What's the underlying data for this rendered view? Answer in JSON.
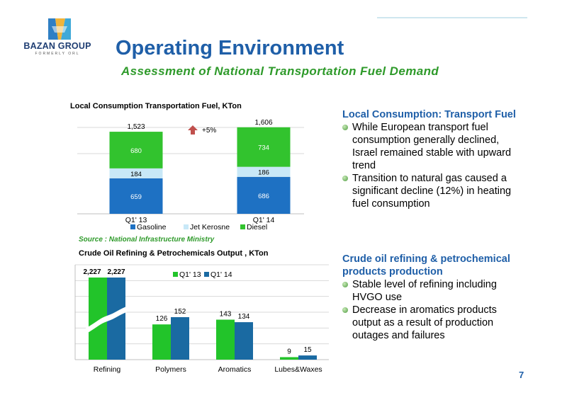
{
  "logo": {
    "name": "BAZAN GROUP",
    "sub": "FORMERLY ORL"
  },
  "title": "Operating Environment",
  "subtitle": "Assessment of National Transportation Fuel Demand",
  "source": "Source : National Infrastructure Ministry",
  "page_number": "7",
  "colors": {
    "gasoline": "#1e71c3",
    "jet_kerosene": "#c8e8f7",
    "diesel": "#32c32e",
    "q1_13": "#22c42a",
    "q1_14": "#1a6aa2",
    "title_blue": "#1f5fa8",
    "green_text": "#2e9a2a",
    "arrow_red": "#c0504d"
  },
  "right_panels": [
    {
      "heading": "Local Consumption: Transport Fuel",
      "bullets": [
        "While European transport fuel consumption generally declined, Israel remained stable with upward trend",
        "Transition to natural gas caused a significant decline (12%) in heating fuel consumption"
      ]
    },
    {
      "heading": "Crude oil refining & petrochemical products production",
      "bullets": [
        "Stable level of refining including HVGO use",
        "Decrease in aromatics products output as a result of production outages and failures"
      ]
    }
  ],
  "chart_data": [
    {
      "type": "bar",
      "stacked": true,
      "title": "Local Consumption Transportation Fuel, KTon",
      "categories": [
        "Q1' 13",
        "Q1' 14"
      ],
      "series": [
        {
          "name": "Gasoline",
          "values": [
            659,
            686
          ]
        },
        {
          "name": "Jet Kerosne",
          "values": [
            184,
            186
          ]
        },
        {
          "name": "Diesel",
          "values": [
            680,
            734
          ]
        }
      ],
      "totals": [
        1523,
        1606
      ],
      "total_labels": [
        "1,523",
        "1,606"
      ],
      "annotation": "+5%",
      "legend_position": "bottom",
      "grid": true,
      "ylim": [
        0,
        1800
      ]
    },
    {
      "type": "bar",
      "title": "Crude Oil Refining & Petrochemicals Output , KTon",
      "categories": [
        "Refining",
        "Polymers",
        "Aromatics",
        "Lubes&Waxes"
      ],
      "series": [
        {
          "name": "Q1' 13",
          "values": [
            2227,
            126,
            143,
            9
          ],
          "labels": [
            "2,227",
            "126",
            "143",
            "9"
          ]
        },
        {
          "name": "Q1' 14",
          "values": [
            2227,
            152,
            134,
            15
          ],
          "labels": [
            "2,227",
            "152",
            "134",
            "15"
          ]
        }
      ],
      "axis_break": true,
      "legend_position": "top",
      "grid": true,
      "ylim": [
        0,
        350
      ]
    }
  ]
}
